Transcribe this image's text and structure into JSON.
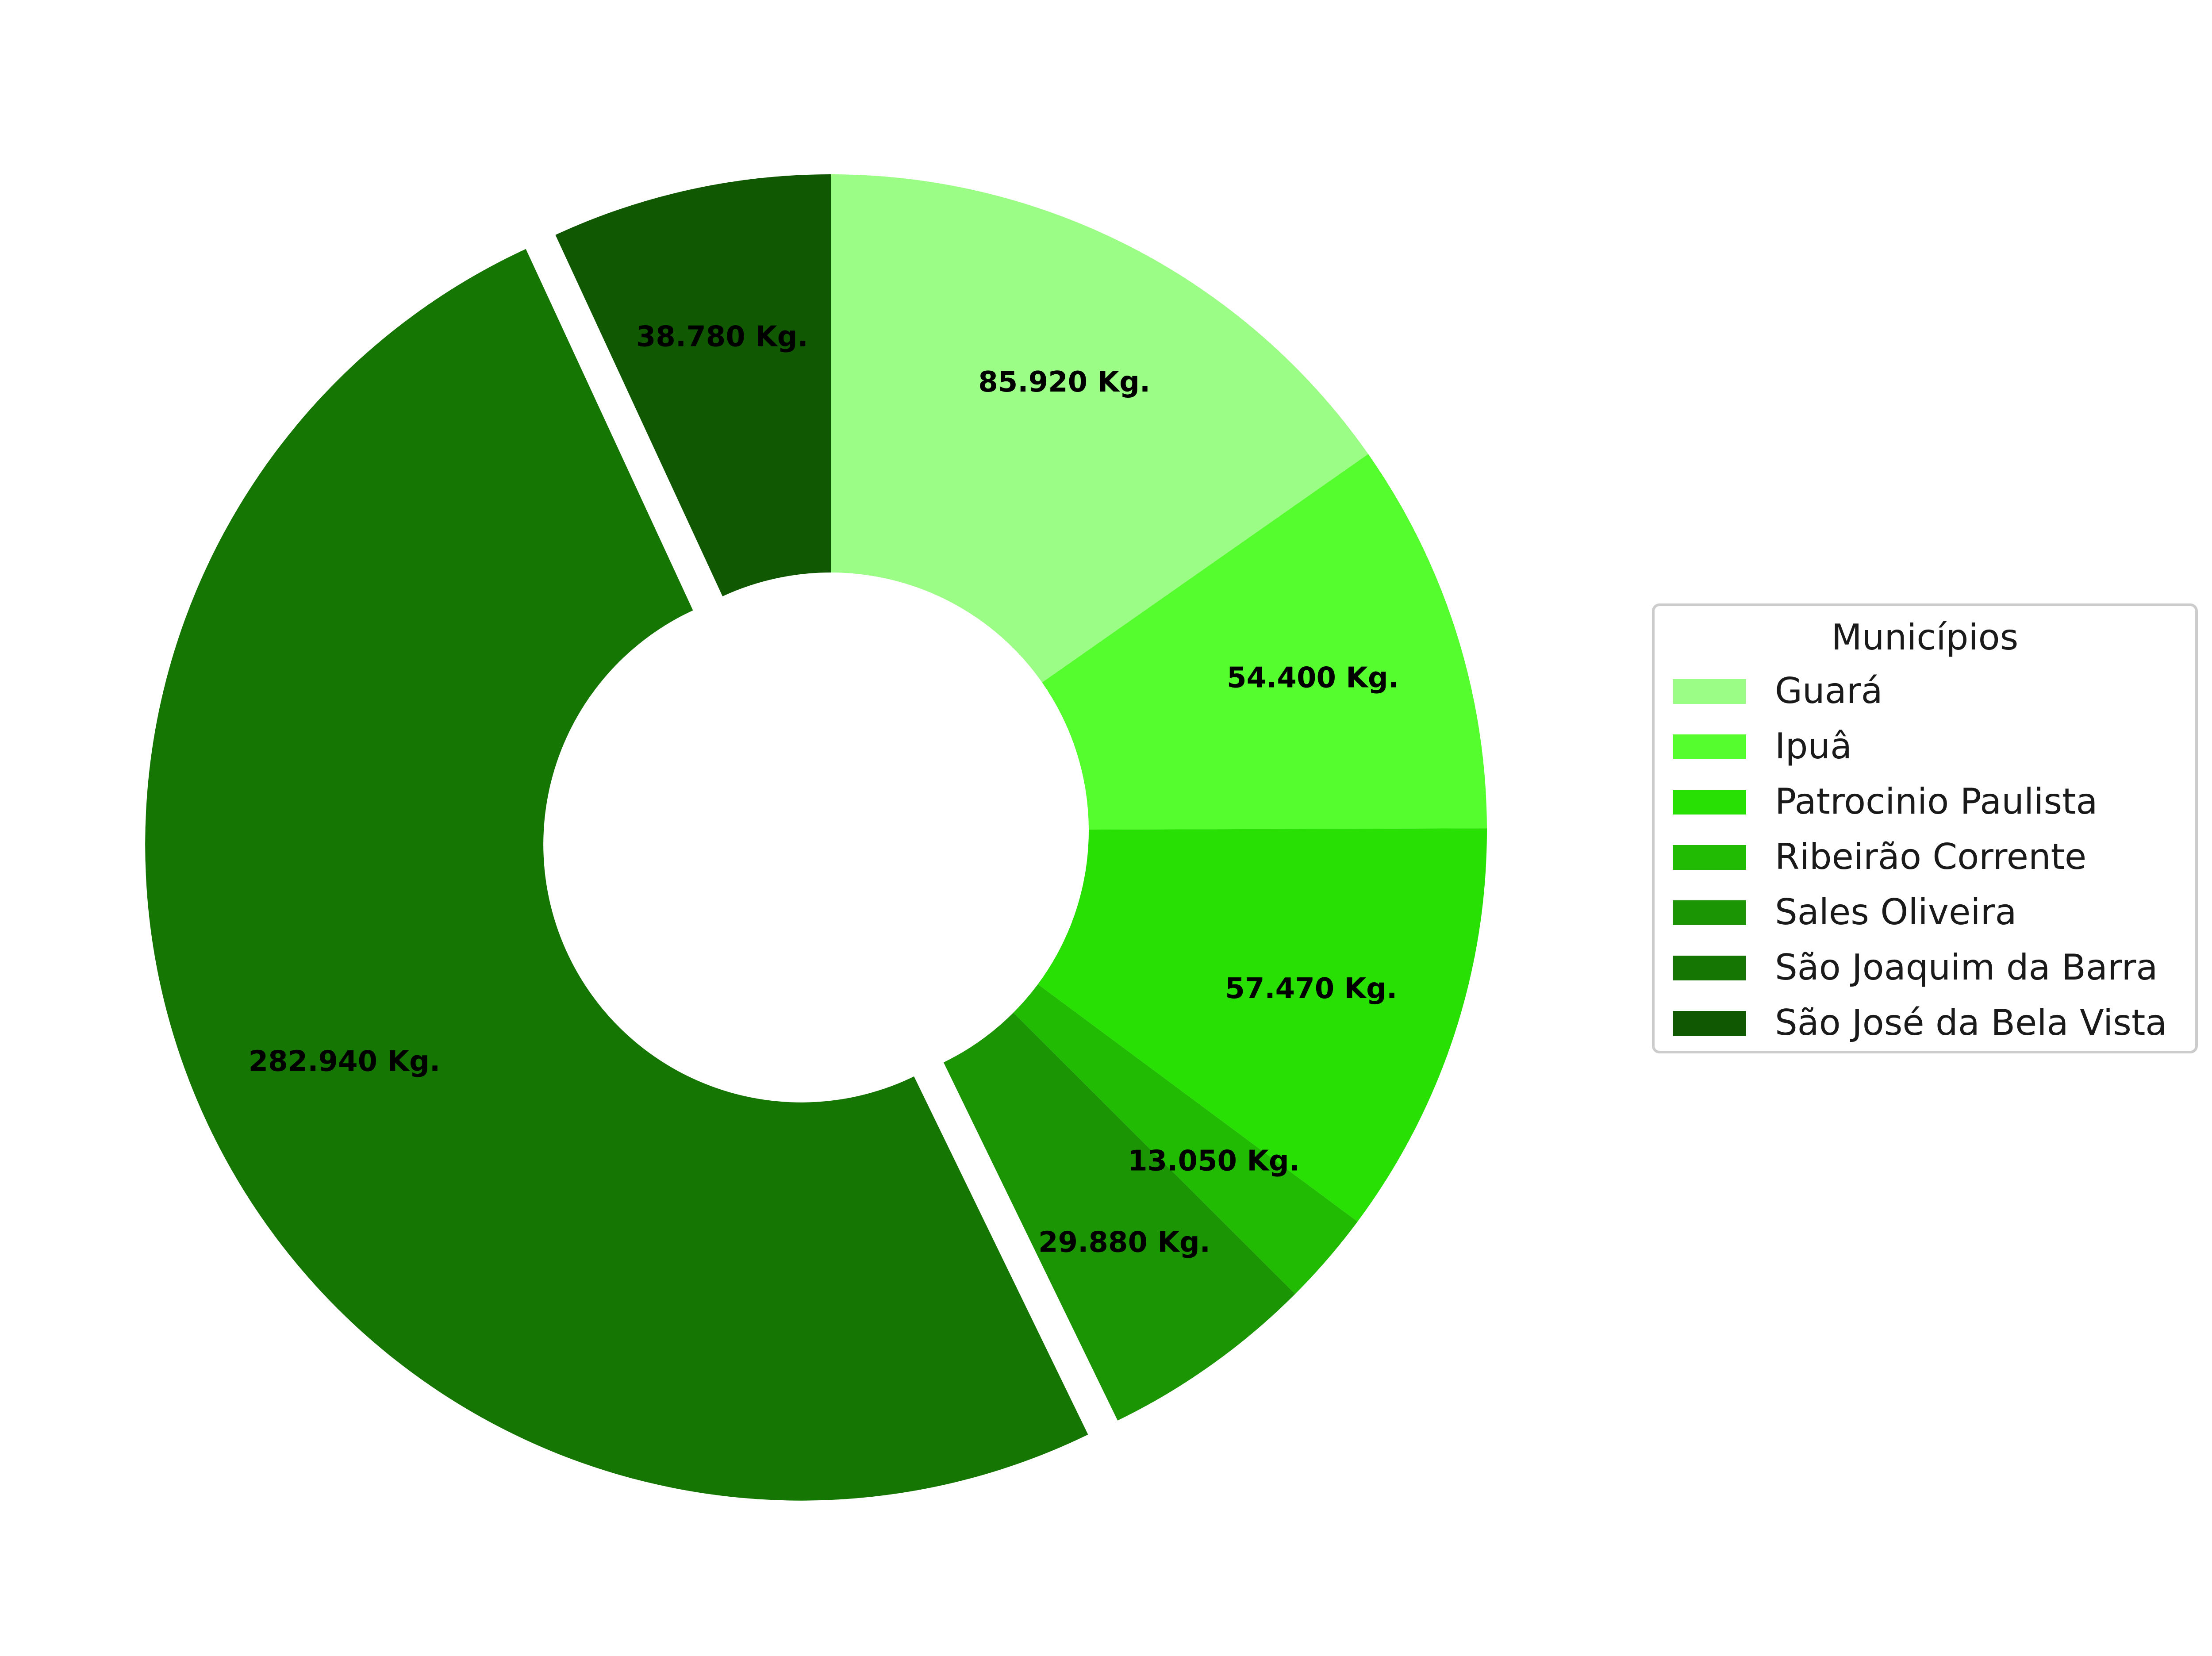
{
  "chart_data": {
    "type": "pie",
    "donut": true,
    "start_angle_deg": 90,
    "direction": "clockwise",
    "slices": [
      {
        "name": "Guará",
        "value": 85920,
        "label": "85.920 Kg.",
        "color": "#9cfd86",
        "explode": false
      },
      {
        "name": "Ipuâ",
        "value": 54400,
        "label": "54.400 Kg.",
        "color": "#55fd2f",
        "explode": false
      },
      {
        "name": "Patrocinio Paulista",
        "value": 57470,
        "label": "57.470 Kg.",
        "color": "#28e004",
        "explode": false
      },
      {
        "name": "Ribeirão Corrente",
        "value": 13050,
        "label": "13.050 Kg.",
        "color": "#22bb04",
        "explode": false
      },
      {
        "name": "Sales Oliveira",
        "value": 29880,
        "label": "29.880 Kg.",
        "color": "#1c9504",
        "explode": false
      },
      {
        "name": "São Joaquim da Barra",
        "value": 282940,
        "label": "282.940 Kg.",
        "color": "#167603",
        "explode": true
      },
      {
        "name": "São José da Bela Vista",
        "value": 38780,
        "label": "38.780 Kg.",
        "color": "#105902",
        "explode": false
      }
    ],
    "legend": {
      "title": "Municípios",
      "placement": "center-right"
    }
  }
}
